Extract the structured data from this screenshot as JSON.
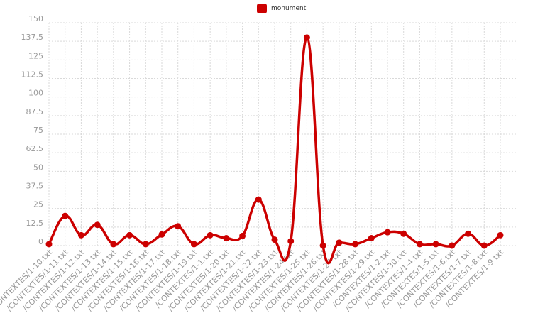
{
  "chart_data": {
    "type": "line",
    "title": "",
    "xlabel": "",
    "ylabel": "",
    "ylim": [
      0,
      150
    ],
    "yticks": [
      0,
      12.5,
      25,
      37.5,
      50,
      62.5,
      75,
      87.5,
      100,
      112.5,
      125,
      137.5,
      150
    ],
    "grid": true,
    "legend_position": "top-center",
    "categories": [
      "/CONTEXTES/1-10.txt",
      "/CONTEXTES/1-11.txt",
      "/CONTEXTES/1-12.txt",
      "/CONTEXTES/1-13.txt",
      "/CONTEXTES/1-14.txt",
      "/CONTEXTES/1-15.txt",
      "/CONTEXTES/1-16.txt",
      "/CONTEXTES/1-17.txt",
      "/CONTEXTES/1-18.txt",
      "/CONTEXTES/1-19.txt",
      "/CONTEXTES/1-1.txt",
      "/CONTEXTES/1-20.txt",
      "/CONTEXTES/1-21.txt",
      "/CONTEXTES/1-22.txt",
      "/CONTEXTES/1-23.txt",
      "/CONTEXTES/1-24.txt",
      "/CONTEXTES/1-25.txt",
      "/CONTEXTES/1-26.txt",
      "/CONTEXTES/1-27.txt",
      "/CONTEXTES/1-28.txt",
      "/CONTEXTES/1-29.txt",
      "/CONTEXTES/1-2.txt",
      "/CONTEXTES/1-30.txt",
      "/CONTEXTES/1-4.txt",
      "/CONTEXTES/1-5.txt",
      "/CONTEXTES/1-6.txt",
      "/CONTEXTES/1-7.txt",
      "/CONTEXTES/1-8.txt",
      "/CONTEXTES/1-9.txt"
    ],
    "series": [
      {
        "name": "monument",
        "color": "#cc0000",
        "values": [
          1,
          20,
          7,
          14,
          1,
          7,
          1,
          7.5,
          13,
          1,
          7,
          5,
          6.5,
          31,
          4,
          3,
          140,
          0,
          2,
          1,
          5,
          9,
          8,
          1,
          1,
          0,
          8,
          0,
          7
        ]
      }
    ]
  }
}
